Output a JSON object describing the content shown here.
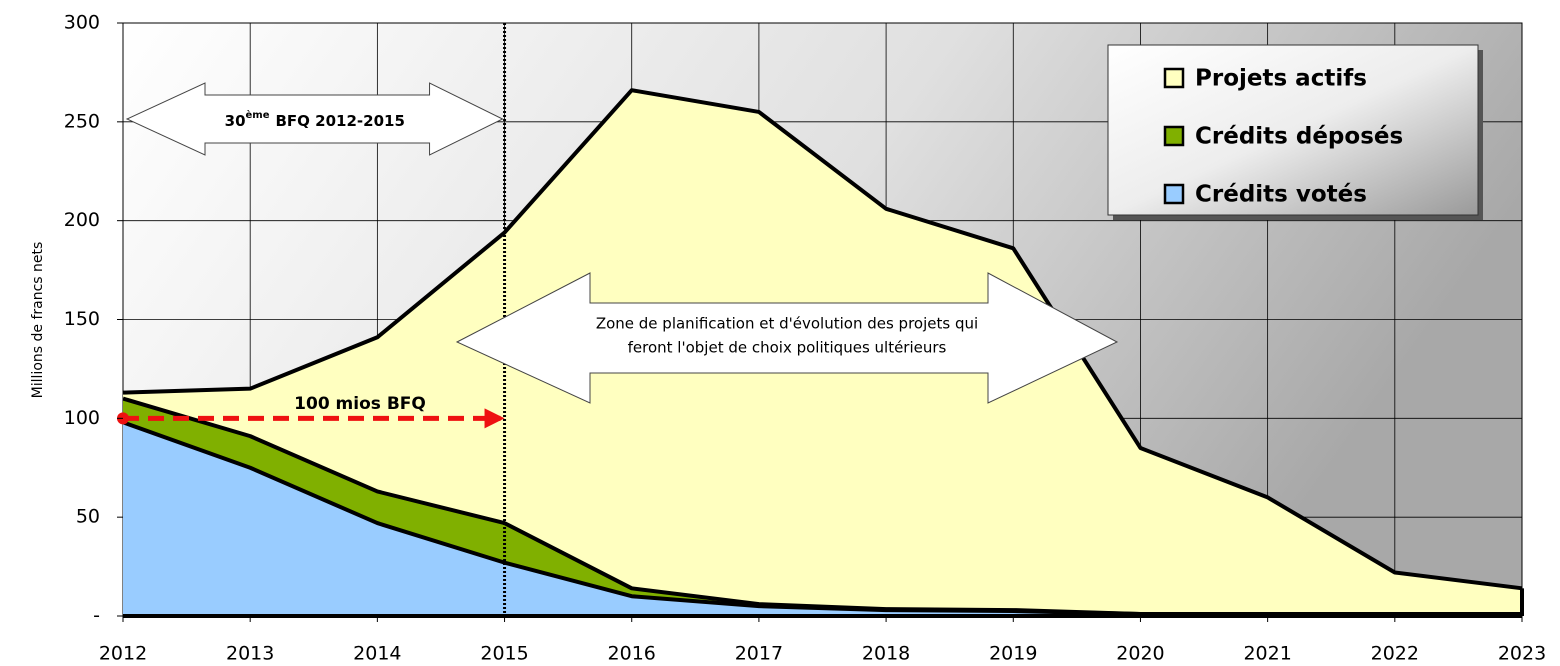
{
  "chart_data": {
    "type": "area",
    "y_label": "Millions de francs nets",
    "x": [
      2012,
      2013,
      2014,
      2015,
      2016,
      2017,
      2018,
      2019,
      2020,
      2021,
      2022,
      2023
    ],
    "xlim": [
      2012,
      2023
    ],
    "xticks": [
      2012,
      2013,
      2014,
      2015,
      2016,
      2017,
      2018,
      2019,
      2020,
      2021,
      2022,
      2023
    ],
    "ylim": [
      0,
      300
    ],
    "yticks": [
      {
        "value": 0,
        "label": "-"
      },
      50,
      100,
      150,
      200,
      250,
      300
    ],
    "grid": true,
    "legend": "top-right",
    "series": [
      {
        "name": "Projets actifs",
        "color": "#ffffc0",
        "values": [
          113,
          115,
          141,
          194,
          266,
          255,
          206,
          186,
          85,
          60,
          22,
          14
        ]
      },
      {
        "name": "Crédits déposés",
        "color": "#80b000",
        "values": [
          110,
          91,
          63,
          47,
          14,
          6,
          3.5,
          3,
          1,
          1,
          1,
          1
        ]
      },
      {
        "name": "Crédits votés",
        "color": "#99ccff",
        "values": [
          98,
          75,
          47,
          27,
          10,
          5,
          3,
          2.5,
          1,
          1,
          1,
          1
        ]
      }
    ],
    "annotations": {
      "period": {
        "number": "30",
        "sup": "ème",
        "text": "BFQ  2012-2015",
        "x": [
          2012,
          2015
        ]
      },
      "bfq_line": {
        "label": "100 mios BFQ",
        "value": 100,
        "x": [
          2012,
          2015
        ]
      },
      "zone": [
        "Zone de planification et d'évolution des projets qui",
        "feront l'objet de choix politiques ultérieurs"
      ]
    }
  }
}
